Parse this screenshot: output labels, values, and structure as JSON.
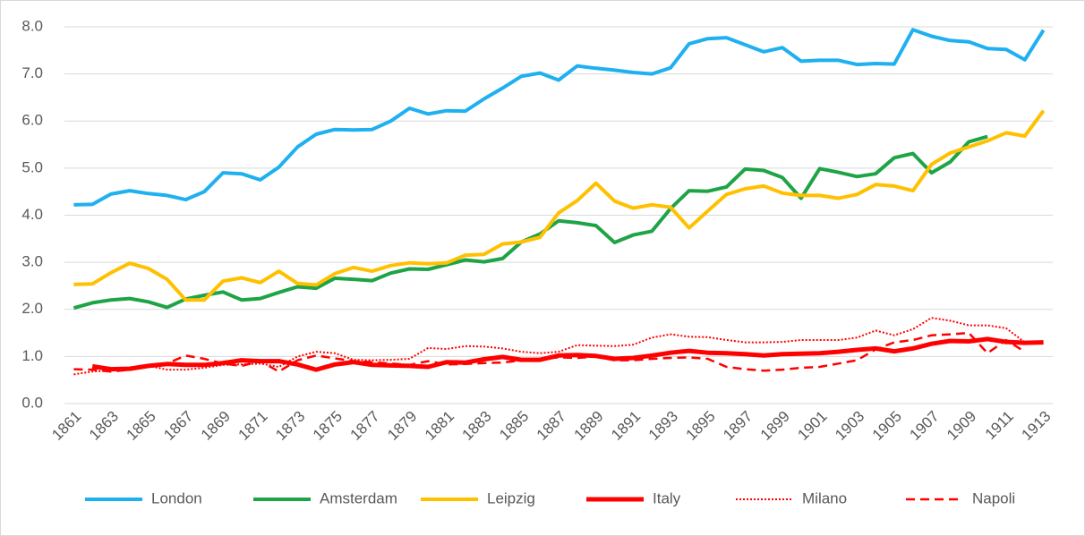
{
  "chart_data": {
    "type": "line",
    "categories": [
      1861,
      null,
      1863,
      null,
      1865,
      null,
      1867,
      null,
      1869,
      null,
      1871,
      null,
      1873,
      null,
      1875,
      null,
      1877,
      null,
      1879,
      null,
      1881,
      null,
      1883,
      null,
      1885,
      null,
      1887,
      null,
      1889,
      null,
      1891,
      null,
      1893,
      null,
      1895,
      null,
      1897,
      null,
      1899,
      null,
      1901,
      null,
      1903,
      null,
      1905,
      null,
      1907,
      null,
      1909,
      null,
      1911,
      null,
      1913
    ],
    "series": [
      {
        "name": "London",
        "color": "#1fb0f0",
        "width": 4,
        "dash": "solid",
        "values": [
          4.22,
          4.23,
          4.45,
          4.52,
          4.46,
          4.42,
          4.33,
          4.5,
          4.9,
          4.88,
          4.75,
          5.02,
          5.45,
          5.72,
          5.82,
          5.81,
          5.82,
          6.0,
          6.27,
          6.15,
          6.22,
          6.21,
          6.47,
          6.7,
          6.95,
          7.02,
          6.87,
          7.17,
          7.12,
          7.08,
          7.03,
          7.0,
          7.13,
          7.64,
          7.75,
          7.77,
          7.62,
          7.47,
          7.56,
          7.27,
          7.29,
          7.29,
          7.2,
          7.22,
          7.21,
          7.94,
          7.8,
          7.71,
          7.68,
          7.54,
          7.52,
          7.3,
          7.93
        ]
      },
      {
        "name": "Amsterdam",
        "color": "#1ea446",
        "width": 4,
        "dash": "solid",
        "values": [
          2.03,
          2.14,
          2.2,
          2.23,
          2.16,
          2.04,
          2.22,
          2.3,
          2.37,
          2.2,
          2.23,
          2.36,
          2.48,
          2.45,
          2.66,
          2.64,
          2.61,
          2.77,
          2.86,
          2.85,
          2.95,
          3.05,
          3.01,
          3.08,
          3.43,
          3.6,
          3.88,
          3.84,
          3.78,
          3.42,
          3.58,
          3.66,
          4.14,
          4.52,
          4.51,
          4.6,
          4.98,
          4.95,
          4.8,
          4.36,
          4.99,
          4.91,
          4.82,
          4.88,
          5.22,
          5.31,
          4.9,
          5.13,
          5.56,
          5.67,
          null,
          null,
          null
        ]
      },
      {
        "name": "Leipzig",
        "color": "#ffc000",
        "width": 4,
        "dash": "solid",
        "values": [
          2.53,
          2.54,
          2.78,
          2.98,
          2.87,
          2.64,
          2.2,
          2.2,
          2.6,
          2.67,
          2.57,
          2.81,
          2.55,
          2.52,
          2.76,
          2.89,
          2.81,
          2.93,
          2.99,
          2.97,
          2.99,
          3.15,
          3.17,
          3.39,
          3.43,
          3.53,
          4.05,
          4.31,
          4.68,
          4.3,
          4.15,
          4.22,
          4.17,
          3.73,
          4.09,
          4.44,
          4.56,
          4.62,
          4.47,
          4.42,
          4.42,
          4.36,
          4.44,
          4.65,
          4.62,
          4.52,
          5.08,
          5.32,
          5.45,
          5.58,
          5.75,
          5.68,
          6.22
        ]
      },
      {
        "name": "Italy",
        "color": "#ff0000",
        "width": 5,
        "dash": "solid",
        "values": [
          null,
          0.79,
          0.73,
          0.74,
          0.8,
          0.84,
          0.82,
          0.82,
          0.86,
          0.92,
          0.9,
          0.9,
          0.83,
          0.72,
          0.83,
          0.88,
          0.82,
          0.81,
          0.8,
          0.78,
          0.88,
          0.87,
          0.94,
          0.99,
          0.93,
          0.93,
          1.02,
          1.03,
          1.01,
          0.95,
          0.97,
          1.02,
          1.08,
          1.12,
          1.08,
          1.07,
          1.05,
          1.02,
          1.05,
          1.06,
          1.07,
          1.1,
          1.14,
          1.17,
          1.11,
          1.17,
          1.27,
          1.33,
          1.32,
          1.37,
          1.31,
          1.29,
          1.3
        ]
      },
      {
        "name": "Milano",
        "color": "#ff0000",
        "width": 2,
        "dash": "dotted",
        "values": [
          0.62,
          0.68,
          0.7,
          0.77,
          0.8,
          0.72,
          0.72,
          0.76,
          0.82,
          0.83,
          0.85,
          0.78,
          1.0,
          1.1,
          1.07,
          0.93,
          0.92,
          0.93,
          0.95,
          1.18,
          1.16,
          1.22,
          1.21,
          1.17,
          1.1,
          1.07,
          1.1,
          1.24,
          1.23,
          1.22,
          1.25,
          1.4,
          1.47,
          1.42,
          1.41,
          1.35,
          1.3,
          1.3,
          1.31,
          1.35,
          1.35,
          1.35,
          1.4,
          1.55,
          1.45,
          1.58,
          1.82,
          1.76,
          1.66,
          1.66,
          1.6,
          1.3,
          null
        ]
      },
      {
        "name": "Napoli",
        "color": "#ff0000",
        "width": 2.5,
        "dash": "dashed",
        "values": [
          0.73,
          0.72,
          0.68,
          0.72,
          0.8,
          0.85,
          1.02,
          0.95,
          0.85,
          0.8,
          0.9,
          0.68,
          0.92,
          1.02,
          0.96,
          0.9,
          0.88,
          0.85,
          0.82,
          0.9,
          0.83,
          0.84,
          0.86,
          0.87,
          0.92,
          0.95,
          0.98,
          0.97,
          1.0,
          0.92,
          0.92,
          0.95,
          0.97,
          0.98,
          0.95,
          0.78,
          0.73,
          0.7,
          0.72,
          0.76,
          0.78,
          0.85,
          0.92,
          1.15,
          1.3,
          1.35,
          1.45,
          1.47,
          1.5,
          1.07,
          1.35,
          1.1,
          null
        ]
      }
    ],
    "ylim": [
      0,
      8
    ],
    "yticks": [
      {
        "value": 0,
        "label": "0.0"
      },
      {
        "value": 1,
        "label": "1.0"
      },
      {
        "value": 2,
        "label": "2.0"
      },
      {
        "value": 3,
        "label": "3.0"
      },
      {
        "value": 4,
        "label": "4.0"
      },
      {
        "value": 5,
        "label": "5.0"
      },
      {
        "value": 6,
        "label": "6.0"
      },
      {
        "value": 7,
        "label": "7.0"
      },
      {
        "value": 8,
        "label": "8.0"
      }
    ],
    "grid": true,
    "legend": "bottom"
  }
}
